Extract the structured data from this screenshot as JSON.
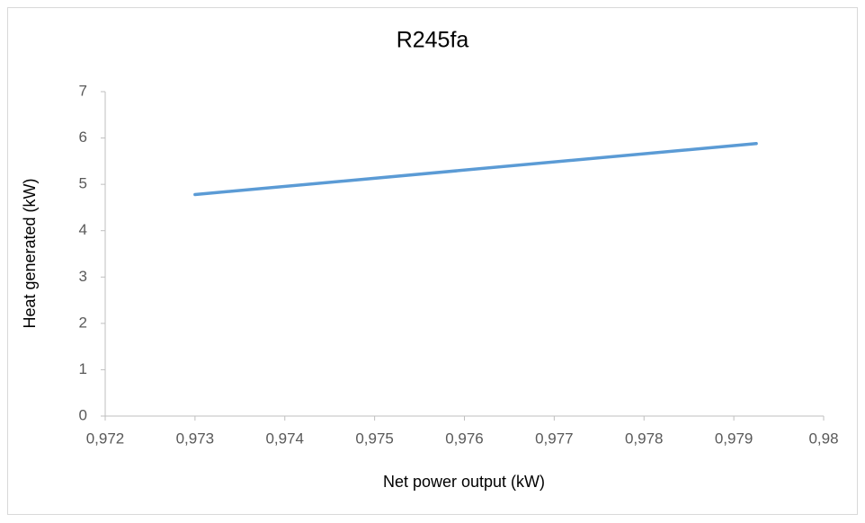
{
  "chart_data": {
    "type": "line",
    "title": "R245fa",
    "x_label": "Net power output (kW)",
    "y_label": "Heat generated (kW)",
    "series": [
      {
        "name": "R245fa",
        "color": "#5b9bd5",
        "x": [
          0.973,
          0.97925
        ],
        "values": [
          4.78,
          5.88
        ]
      }
    ],
    "xlim": [
      0.972,
      0.98
    ],
    "xticks": [
      {
        "value": 0.972,
        "label": "0,972"
      },
      {
        "value": 0.973,
        "label": "0,973"
      },
      {
        "value": 0.974,
        "label": "0,974"
      },
      {
        "value": 0.975,
        "label": "0,975"
      },
      {
        "value": 0.976,
        "label": "0,976"
      },
      {
        "value": 0.977,
        "label": "0,977"
      },
      {
        "value": 0.978,
        "label": "0,978"
      },
      {
        "value": 0.979,
        "label": "0,979"
      },
      {
        "value": 0.98,
        "label": "0,98"
      }
    ],
    "ylim": [
      0,
      7
    ],
    "yticks": [
      0,
      1,
      2,
      3,
      4,
      5,
      6,
      7
    ],
    "grid": false
  }
}
